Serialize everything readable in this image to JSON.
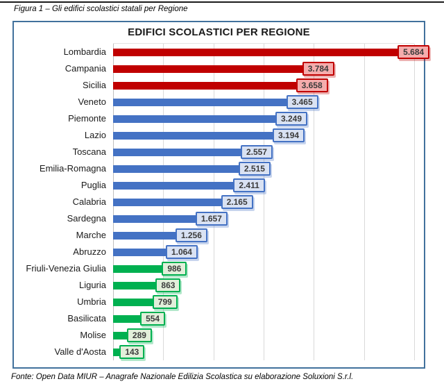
{
  "page": {
    "caption": "Figura 1 – Gli edifici scolastici statali per Regione",
    "source": "Fonte: Open Data MIUR – Anagrafe Nazionale Edilizia Scolastica su elaborazione Soluxioni S.r.l."
  },
  "chart_data": {
    "type": "bar",
    "orientation": "horizontal",
    "title": "EDIFICI SCOLASTICI PER REGIONE",
    "xlabel": "",
    "ylabel": "",
    "xlim": [
      0,
      6000
    ],
    "gridline_values": [
      0,
      1000,
      2000,
      3000,
      4000,
      5000,
      6000
    ],
    "grid": "vertical gridlines only, no axis tick labels",
    "legend": "none",
    "categories": [
      "Lombardia",
      "Campania",
      "Sicilia",
      "Veneto",
      "Piemonte",
      "Lazio",
      "Toscana",
      "Emilia-Romagna",
      "Puglia",
      "Calabria",
      "Sardegna",
      "Marche",
      "Abruzzo",
      "Friuli-Venezia Giulia",
      "Liguria",
      "Umbria",
      "Basilicata",
      "Molise",
      "Valle d'Aosta"
    ],
    "values": [
      5684,
      3784,
      3658,
      3465,
      3249,
      3194,
      2557,
      2515,
      2411,
      2165,
      1657,
      1256,
      1064,
      986,
      863,
      799,
      554,
      289,
      143
    ],
    "value_labels": [
      "5.684",
      "3.784",
      "3.658",
      "3.465",
      "3.249",
      "3.194",
      "2.557",
      "2.515",
      "2.411",
      "2.165",
      "1.657",
      "1.256",
      "1.064",
      "986",
      "863",
      "799",
      "554",
      "289",
      "143"
    ],
    "bars": [
      {
        "label": "Lombardia",
        "value": 5684,
        "display": "5.684",
        "group": "red"
      },
      {
        "label": "Campania",
        "value": 3784,
        "display": "3.784",
        "group": "red"
      },
      {
        "label": "Sicilia",
        "value": 3658,
        "display": "3.658",
        "group": "red"
      },
      {
        "label": "Veneto",
        "value": 3465,
        "display": "3.465",
        "group": "blue"
      },
      {
        "label": "Piemonte",
        "value": 3249,
        "display": "3.249",
        "group": "blue"
      },
      {
        "label": "Lazio",
        "value": 3194,
        "display": "3.194",
        "group": "blue"
      },
      {
        "label": "Toscana",
        "value": 2557,
        "display": "2.557",
        "group": "blue"
      },
      {
        "label": "Emilia-Romagna",
        "value": 2515,
        "display": "2.515",
        "group": "blue"
      },
      {
        "label": "Puglia",
        "value": 2411,
        "display": "2.411",
        "group": "blue"
      },
      {
        "label": "Calabria",
        "value": 2165,
        "display": "2.165",
        "group": "blue"
      },
      {
        "label": "Sardegna",
        "value": 1657,
        "display": "1.657",
        "group": "blue"
      },
      {
        "label": "Marche",
        "value": 1256,
        "display": "1.256",
        "group": "blue"
      },
      {
        "label": "Abruzzo",
        "value": 1064,
        "display": "1.064",
        "group": "blue"
      },
      {
        "label": "Friuli-Venezia Giulia",
        "value": 986,
        "display": "986",
        "group": "green"
      },
      {
        "label": "Liguria",
        "value": 863,
        "display": "863",
        "group": "green"
      },
      {
        "label": "Umbria",
        "value": 799,
        "display": "799",
        "group": "green"
      },
      {
        "label": "Basilicata",
        "value": 554,
        "display": "554",
        "group": "green"
      },
      {
        "label": "Molise",
        "value": 289,
        "display": "289",
        "group": "green"
      },
      {
        "label": "Valle d'Aosta",
        "value": 143,
        "display": "143",
        "group": "green"
      }
    ],
    "colors": {
      "red_bar": "#C00000",
      "red_box_fill": "#F5ACAC",
      "blue_bar": "#4472C4",
      "blue_box_fill": "#D9E2F3",
      "green_bar": "#00B050",
      "green_box_fill": "#E2EFDA",
      "chart_border": "#41719C",
      "gridline": "#D9D9D9",
      "axis_line": "#BFBFBF",
      "value_text": "#3B3B3B"
    }
  }
}
